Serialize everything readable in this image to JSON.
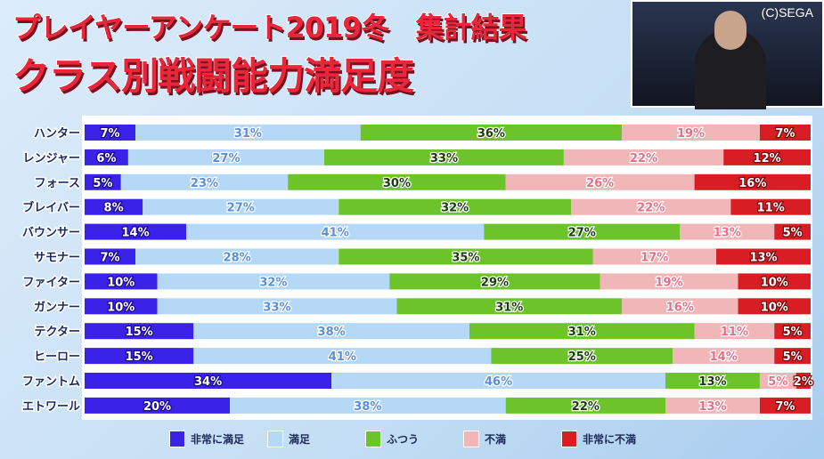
{
  "header": {
    "title_line1": "プレイヤーアンケート2019冬",
    "title_line1b": "集計結果",
    "title_line2": "クラス別戦闘能力満足度",
    "copyright": "(C)SEGA"
  },
  "chart_data": {
    "type": "bar",
    "orientation": "horizontal",
    "stacked": true,
    "categories": [
      "ハンター",
      "レンジャー",
      "フォース",
      "ブレイバー",
      "バウンサー",
      "サモナー",
      "ファイター",
      "ガンナー",
      "テクター",
      "ヒーロー",
      "ファントム",
      "エトワール"
    ],
    "series": [
      {
        "name": "非常に満足",
        "color": "#3a22e8",
        "values": [
          7,
          6,
          5,
          8,
          14,
          7,
          10,
          10,
          15,
          15,
          34,
          20
        ]
      },
      {
        "name": "満足",
        "color": "#b4d8f6",
        "values": [
          31,
          27,
          23,
          27,
          41,
          28,
          32,
          33,
          38,
          41,
          46,
          38
        ]
      },
      {
        "name": "ふつう",
        "color": "#6cc42a",
        "values": [
          36,
          33,
          30,
          32,
          27,
          35,
          29,
          31,
          31,
          25,
          13,
          22
        ]
      },
      {
        "name": "不満",
        "color": "#f0b6b8",
        "values": [
          19,
          22,
          26,
          22,
          13,
          17,
          19,
          16,
          11,
          14,
          5,
          13
        ]
      },
      {
        "name": "非常に不満",
        "color": "#d81e24",
        "values": [
          7,
          12,
          16,
          11,
          5,
          13,
          10,
          10,
          5,
          5,
          2,
          7
        ]
      }
    ],
    "unit": "%",
    "legend": "bottom"
  }
}
